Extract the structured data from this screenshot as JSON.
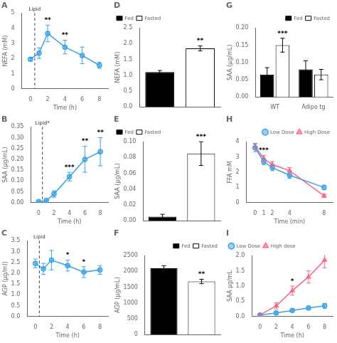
{
  "chart_data": [
    {
      "type": "line",
      "title": "A",
      "xlabel": "Time (h)",
      "ylabel": "NEFA (mM)",
      "x": [
        0,
        1,
        2,
        4,
        6,
        8
      ],
      "values": [
        1.95,
        2.35,
        3.65,
        2.75,
        2.2,
        1.55
      ],
      "yerr": [
        0.1,
        0.35,
        0.55,
        0.45,
        0.55,
        0.2
      ],
      "marker": "circle",
      "xlim": [
        -1,
        9
      ],
      "xticks": [
        0,
        2,
        4,
        6,
        8
      ],
      "ylim": [
        0,
        5
      ],
      "yticks": [
        0,
        1,
        2,
        3,
        4,
        5
      ],
      "grid": false,
      "vlines": [
        {
          "x": 0.5,
          "text": "Lipid",
          "line_style": "dashed"
        }
      ],
      "annotations": [
        {
          "x": 2,
          "text": "**"
        },
        {
          "x": 4,
          "text": "**"
        }
      ]
    },
    {
      "type": "line",
      "title": "B",
      "xlabel": "Time (h)",
      "ylabel": "SAA (μg/mL)",
      "x": [
        0,
        1,
        2,
        4,
        6,
        8
      ],
      "values": [
        0.005,
        0.01,
        0.04,
        0.12,
        0.2,
        0.235
      ],
      "yerr": [
        0.003,
        0.007,
        0.015,
        0.02,
        0.06,
        0.065
      ],
      "marker": "circle",
      "xlim": [
        -1,
        9
      ],
      "xticks": [
        0,
        2,
        4,
        6,
        8
      ],
      "ylim": [
        0,
        0.35
      ],
      "yticks": [
        {
          "value": 0,
          "label": "0.00"
        },
        0.05,
        {
          "value": 0.1,
          "label": "0.10"
        },
        0.15,
        {
          "value": 0.2,
          "label": "0.20"
        },
        0.25,
        {
          "value": 0.3,
          "label": "0.30"
        },
        0.35
      ],
      "grid": false,
      "vlines": [
        {
          "x": 0.5,
          "text": "Lipid*",
          "line_style": "dashed"
        }
      ],
      "annotations": [
        {
          "x": 4,
          "text": "***"
        },
        {
          "x": 6,
          "text": "**"
        },
        {
          "x": 8,
          "text": "**"
        }
      ]
    },
    {
      "type": "line",
      "title": "C",
      "xlabel": "Time (h)",
      "ylabel": "AGP (μg/ml)",
      "x": [
        0,
        1,
        2,
        4,
        6,
        8
      ],
      "values": [
        2.45,
        2.2,
        2.6,
        2.35,
        2.05,
        2.15
      ],
      "yerr": [
        0.2,
        0.25,
        0.45,
        0.25,
        0.25,
        0.2
      ],
      "marker": "circle",
      "xlim": [
        -1,
        9
      ],
      "xticks": [
        0,
        2,
        4,
        6,
        8
      ],
      "ylim": [
        0,
        3.5
      ],
      "yticks": [
        {
          "value": 0,
          "label": "0.0"
        },
        0.5,
        {
          "value": 1,
          "label": "1.0"
        },
        1.5,
        {
          "value": 2,
          "label": "2.0"
        },
        2.5,
        {
          "value": 3,
          "label": "3.0"
        },
        3.5
      ],
      "grid": false,
      "vlines": [
        {
          "x": 0.5,
          "text": "Lipid",
          "line_style": "dashed"
        }
      ],
      "annotations": [
        {
          "x": 4,
          "text": "*"
        },
        {
          "x": 6,
          "text": "*"
        }
      ]
    },
    {
      "type": "bar",
      "title": "D",
      "ylabel": "NEFA (mM)",
      "categories": [
        null,
        null
      ],
      "series": [
        {
          "name": "Fed",
          "color": "black",
          "values": [
            1.1,
            null
          ],
          "yerr": [
            0.05,
            null
          ]
        },
        {
          "name": "Fasted",
          "color": "white",
          "values": [
            null,
            1.85
          ],
          "yerr": [
            null,
            0.08
          ]
        }
      ],
      "ylim": [
        0,
        2.5
      ],
      "yticks": [
        {
          "value": 0,
          "label": "0.0"
        },
        0.5,
        {
          "value": 1,
          "label": "1.0"
        },
        1.5,
        {
          "value": 2,
          "label": "2.0"
        },
        2.5
      ],
      "tick_labels": "y",
      "legend": "upper left",
      "grid": false,
      "annotations": [
        {
          "series": "Fasted",
          "text": "**"
        }
      ]
    },
    {
      "type": "bar",
      "title": "E",
      "ylabel": "SAA (μg/mL)",
      "categories": [
        null,
        null
      ],
      "series": [
        {
          "name": "Fed",
          "color": "black",
          "values": [
            0.005,
            null
          ],
          "yerr": [
            0.003,
            null
          ]
        },
        {
          "name": "Fasted",
          "color": "white",
          "values": [
            null,
            0.085
          ],
          "yerr": [
            null,
            0.015
          ]
        }
      ],
      "ylim": [
        0,
        0.1
      ],
      "yticks": [
        {
          "value": 0,
          "label": "0.00"
        },
        0.02,
        0.04,
        0.06,
        0.08,
        {
          "value": 0.1,
          "label": "0.10"
        }
      ],
      "tick_labels": "y",
      "legend": "upper left",
      "grid": false,
      "annotations": [
        {
          "series": "Fasted",
          "text": "***"
        }
      ]
    },
    {
      "type": "bar",
      "title": "F",
      "ylabel": "AGP (μg/mL)",
      "categories": [
        null,
        null
      ],
      "series": [
        {
          "name": "Fed",
          "color": "black",
          "values": [
            2100,
            null
          ],
          "yerr": [
            80,
            null
          ]
        },
        {
          "name": "Fasted",
          "color": "white",
          "values": [
            null,
            1680
          ],
          "yerr": [
            null,
            70
          ]
        }
      ],
      "ylim": [
        0,
        2500
      ],
      "yticks": [
        0,
        500,
        1000,
        1500,
        2000,
        2500
      ],
      "tick_labels": "y",
      "legend": "upper right",
      "grid": false,
      "annotations": [
        {
          "series": "Fasted",
          "text": "**"
        }
      ]
    },
    {
      "type": "bar",
      "title": "G",
      "ylabel": "SAA (μg/mL)",
      "categories": [
        "WT",
        "Adipo tg"
      ],
      "series": [
        {
          "name": "Fed",
          "color": "black",
          "values": [
            0.065,
            0.08
          ],
          "yerr": [
            0.02,
            0.025
          ]
        },
        {
          "name": "Fasted",
          "color": "white",
          "values": [
            0.15,
            0.065
          ],
          "yerr": [
            0.02,
            0.015
          ]
        }
      ],
      "ylim": [
        0,
        0.2
      ],
      "yticks": [
        {
          "value": 0,
          "label": "0.00"
        },
        0.05,
        {
          "value": 0.1,
          "label": "0.10"
        },
        0.15,
        {
          "value": 0.2,
          "label": "0.20"
        }
      ],
      "legend": "upper right",
      "grid": false,
      "annotations": [
        {
          "series": "Fasted",
          "category": "WT",
          "text": "***"
        }
      ]
    },
    {
      "type": "line",
      "title": "H",
      "xlabel": "Time (min)",
      "ylabel": "FFA mM",
      "x": [
        0,
        1,
        2,
        4,
        8
      ],
      "series": [
        {
          "name": "Low Dose",
          "marker": "circle",
          "values": [
            3.6,
            2.7,
            2.3,
            1.8,
            1.0
          ],
          "yerr": [
            0.25,
            0.2,
            0.2,
            0.2,
            0.15
          ]
        },
        {
          "name": "High Dose",
          "marker": "triangle",
          "values": [
            3.7,
            2.9,
            2.5,
            2.1,
            0.45
          ],
          "yerr": [
            0.2,
            0.2,
            0.2,
            0.2,
            0.1
          ]
        }
      ],
      "xlim": [
        -1,
        9
      ],
      "xticks": [
        0,
        1,
        2,
        4,
        8
      ],
      "ylim": [
        0,
        4
      ],
      "yticks": [
        0,
        1,
        2,
        3,
        4
      ],
      "legend": "upper right",
      "grid": false,
      "annotations": [
        {
          "x": 1,
          "text": "***"
        }
      ]
    },
    {
      "type": "line",
      "title": "I",
      "xlabel": "Time (h)",
      "ylabel": "SAA μg/mL",
      "x": [
        0,
        2,
        4,
        6,
        8
      ],
      "series": [
        {
          "name": "Low Dose",
          "marker": "circle",
          "values": [
            0.05,
            0.12,
            0.2,
            0.28,
            0.35
          ],
          "yerr": [
            0.02,
            0.04,
            0.05,
            0.06,
            0.08
          ]
        },
        {
          "name": "High dose",
          "marker": "triangle",
          "values": [
            0.05,
            0.35,
            0.85,
            1.3,
            1.85
          ],
          "yerr": [
            0.02,
            0.1,
            0.15,
            0.2,
            0.25
          ]
        }
      ],
      "xlim": [
        -1,
        9
      ],
      "xticks": [
        0,
        2,
        4,
        6,
        8
      ],
      "ylim": [
        0,
        2
      ],
      "yticks": [
        {
          "value": 0,
          "label": "0.0"
        },
        0.5,
        {
          "value": 1,
          "label": "1.0"
        },
        1.5,
        {
          "value": 2,
          "label": "2.0"
        }
      ],
      "legend": "upper left",
      "grid": false,
      "annotations": [
        {
          "x": 4,
          "text": "*"
        }
      ]
    }
  ]
}
